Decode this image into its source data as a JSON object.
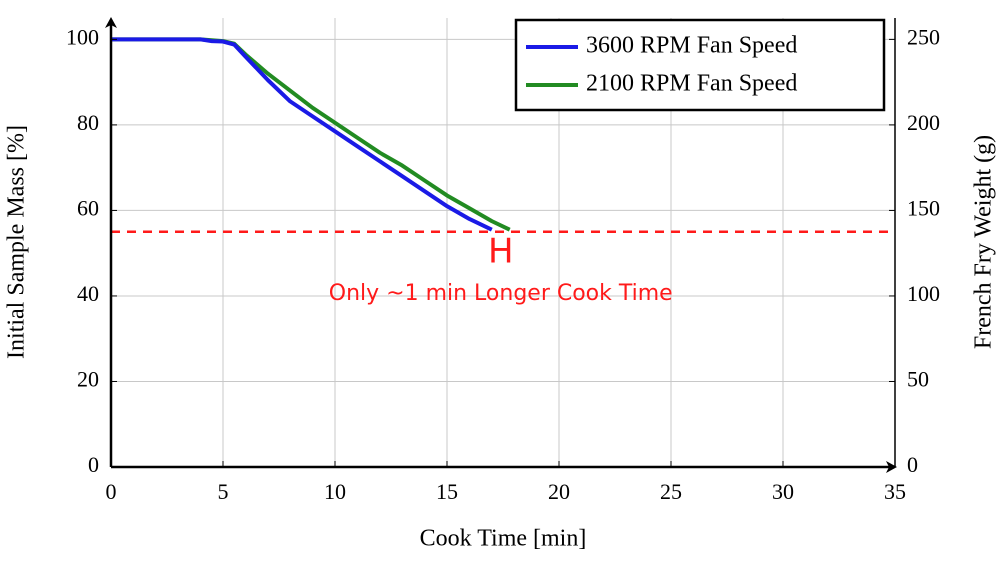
{
  "chart_data": {
    "type": "line",
    "xlabel": "Cook Time [min]",
    "ylabel": "Initial Sample Mass [%]",
    "y2label": "French Fry Weight  (g)",
    "xlim": [
      0,
      35
    ],
    "xticks": [
      0,
      5,
      10,
      15,
      20,
      25,
      30,
      35
    ],
    "ylim": [
      0,
      105
    ],
    "yticks": [
      0,
      20,
      40,
      60,
      80,
      100
    ],
    "y2lim": [
      0,
      262.5
    ],
    "y2ticks": [
      0,
      50,
      100,
      150,
      200,
      250
    ],
    "grid": true,
    "legend": "upper right",
    "series": [
      {
        "name": "3600 RPM Fan Speed",
        "color": "#1a1ae6",
        "x": [
          0,
          4,
          4.5,
          5,
          5.5,
          6,
          7,
          8,
          9,
          10,
          11,
          12,
          13,
          14,
          15,
          16,
          17
        ],
        "values": [
          100,
          100,
          99.6,
          99.5,
          98.8,
          96,
          90.5,
          85.5,
          82,
          78.5,
          75,
          71.5,
          68,
          64.5,
          61,
          58,
          55.5
        ]
      },
      {
        "name": "2100 RPM Fan Speed",
        "color": "#228b22",
        "x": [
          0,
          4,
          4.5,
          5,
          5.5,
          6,
          7,
          8,
          9,
          10,
          11,
          12,
          13,
          14,
          15,
          16,
          17,
          17.8
        ],
        "values": [
          100,
          100,
          99.8,
          99.6,
          99,
          96.5,
          92,
          88,
          84,
          80.5,
          77,
          73.5,
          70.5,
          67,
          63.5,
          60.5,
          57.5,
          55.5
        ]
      }
    ],
    "reference_line": {
      "value": 55,
      "color": "#ff1a1a"
    },
    "annotations": [
      {
        "text": "H",
        "x": 17.4,
        "y": 50
      },
      {
        "text": "Only ~1 min Longer Cook Time",
        "x": 17.4,
        "y": 40.5
      }
    ]
  }
}
